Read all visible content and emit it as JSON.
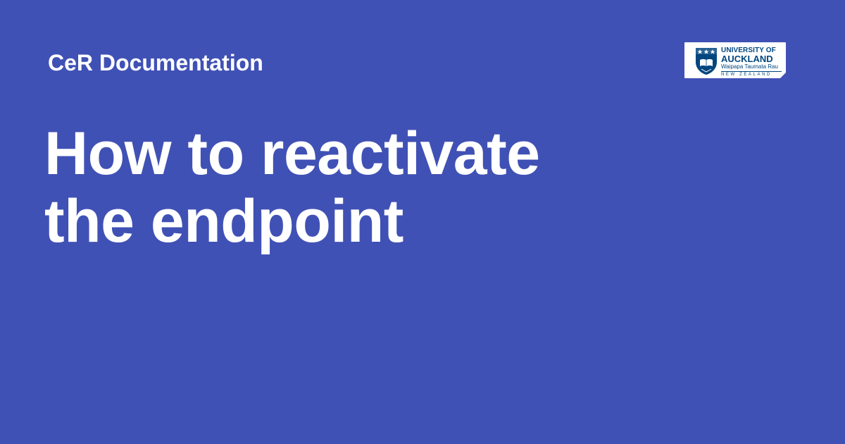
{
  "header": {
    "site_name": "CeR Documentation"
  },
  "main": {
    "title_line1": "How to reactivate",
    "title_line2": "the endpoint"
  },
  "logo": {
    "icon": "university-crest-icon",
    "line1": "UNIVERSITY OF",
    "line2": "AUCKLAND",
    "line3": "Waipapa Taumata Rau",
    "line4": "NEW ZEALAND"
  },
  "colors": {
    "background": "#4051b5",
    "text": "#ffffff",
    "logo_brand": "#00467f",
    "logo_background": "#ffffff"
  }
}
